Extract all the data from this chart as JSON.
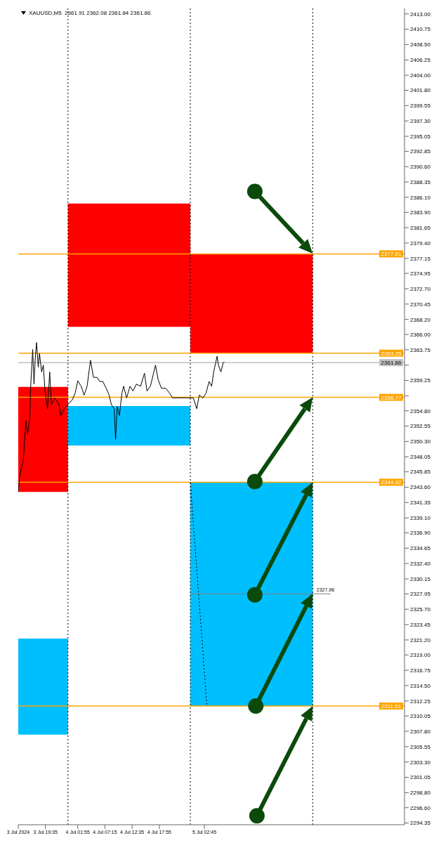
{
  "chart_data": {
    "type": "line",
    "title": "XAUUSD,M5  2361.91 2362.08 2361.84 2361.86",
    "xlim": [
      "2024-07-03T14:15",
      "2024-07-06T18:00"
    ],
    "xticks": [
      {
        "value": "2024-07-03T14:15",
        "label": "3 Jul 2024"
      },
      {
        "value": "2024-07-03T19:35",
        "label": "3 Jul 19:35"
      },
      {
        "value": "2024-07-04T01:55",
        "label": "4 Jul 01:55"
      },
      {
        "value": "2024-07-04T07:15",
        "label": "4 Jul 07:15"
      },
      {
        "value": "2024-07-04T12:35",
        "label": "4 Jul 12:35"
      },
      {
        "value": "2024-07-04T17:55",
        "label": "4 Jul 17:55"
      },
      {
        "value": "2024-07-05T02:45",
        "label": "5 Jul 02:45"
      }
    ],
    "ylim": [
      2294.1,
      2413.8
    ],
    "yticks": [
      {
        "value": 2413,
        "label": "2413.00"
      },
      {
        "value": 2410.75,
        "label": "2410.75"
      },
      {
        "value": 2408.5,
        "label": "2408.50"
      },
      {
        "value": 2406.25,
        "label": "2406.25"
      },
      {
        "value": 2404,
        "label": "2404.00"
      },
      {
        "value": 2401.8,
        "label": "2401.80"
      },
      {
        "value": 2399.55,
        "label": "2399.55"
      },
      {
        "value": 2397.3,
        "label": "2397.30"
      },
      {
        "value": 2395.05,
        "label": "2395.05"
      },
      {
        "value": 2392.85,
        "label": "2392.85"
      },
      {
        "value": 2390.6,
        "label": "2390.60"
      },
      {
        "value": 2388.35,
        "label": "2388.35"
      },
      {
        "value": 2386.1,
        "label": "2386.10"
      },
      {
        "value": 2383.9,
        "label": "2383.90"
      },
      {
        "value": 2381.65,
        "label": "2381.65"
      },
      {
        "value": 2379.4,
        "label": "2379.40"
      },
      {
        "value": 2377.15,
        "label": "2377.15"
      },
      {
        "value": 2374.95,
        "label": "2374.95"
      },
      {
        "value": 2372.7,
        "label": "2372.70"
      },
      {
        "value": 2370.45,
        "label": "2370.45"
      },
      {
        "value": 2368.2,
        "label": "2368.20"
      },
      {
        "value": 2366,
        "label": "2366.00"
      },
      {
        "value": 2363.75,
        "label": "2363.75"
      },
      {
        "value": 2361.5,
        "label": null
      },
      {
        "value": 2359.25,
        "label": "2359.25"
      },
      {
        "value": 2357,
        "label": null
      },
      {
        "value": 2354.8,
        "label": "2354.80"
      },
      {
        "value": 2352.55,
        "label": "2352.55"
      },
      {
        "value": 2350.3,
        "label": "2350.30"
      },
      {
        "value": 2348.05,
        "label": "2348.05"
      },
      {
        "value": 2345.85,
        "label": "2345.85"
      },
      {
        "value": 2343.6,
        "label": "2343.60"
      },
      {
        "value": 2341.35,
        "label": "2341.35"
      },
      {
        "value": 2339.1,
        "label": "2339.10"
      },
      {
        "value": 2336.9,
        "label": "2336.90"
      },
      {
        "value": 2334.65,
        "label": "2334.65"
      },
      {
        "value": 2332.4,
        "label": "2332.40"
      },
      {
        "value": 2330.15,
        "label": "2330.15"
      },
      {
        "value": 2327.95,
        "label": "2327.95"
      },
      {
        "value": 2325.7,
        "label": "2325.70"
      },
      {
        "value": 2323.45,
        "label": "2323.45"
      },
      {
        "value": 2321.2,
        "label": "2321.20"
      },
      {
        "value": 2319,
        "label": "2319.00"
      },
      {
        "value": 2316.75,
        "label": "2316.75"
      },
      {
        "value": 2314.5,
        "label": "2314.50"
      },
      {
        "value": 2312.25,
        "label": "2312.25"
      },
      {
        "value": 2310.05,
        "label": "2310.05"
      },
      {
        "value": 2307.8,
        "label": "2307.80"
      },
      {
        "value": 2305.55,
        "label": "2305.55"
      },
      {
        "value": 2303.3,
        "label": "2303.30"
      },
      {
        "value": 2301.05,
        "label": "2301.05"
      },
      {
        "value": 2298.8,
        "label": "2298.80"
      },
      {
        "value": 2296.6,
        "label": "2296.60"
      },
      {
        "value": 2294.35,
        "label": "2294.35"
      }
    ],
    "series": [
      {
        "type": "area",
        "color": "#ff0000",
        "x": [
          "2024-07-03T14:15",
          "2024-07-04T00:00"
        ],
        "values": [
          null,
          null
        ],
        "upper": [
          2358.3,
          2358.3
        ],
        "lower": [
          2342.9,
          2342.9
        ]
      },
      {
        "type": "area",
        "color": "#ff0000",
        "x": [
          "2024-07-04T00:00",
          "2024-07-05T00:00"
        ],
        "values": [
          null,
          null
        ],
        "upper": [
          2385.2,
          2385.2
        ],
        "lower": [
          2367.1,
          2367.1
        ]
      },
      {
        "type": "area",
        "color": "#ff0000",
        "x": [
          "2024-07-05T00:00",
          "2024-07-06T00:00"
        ],
        "values": [
          null,
          null
        ],
        "upper": [
          2377.8,
          2377.8
        ],
        "lower": [
          2363.3,
          2363.3
        ]
      },
      {
        "type": "area",
        "color": "#00bfff",
        "x": [
          "2024-07-04T00:00",
          "2024-07-05T00:00"
        ],
        "values": [
          null,
          null
        ],
        "upper": [
          2355.5,
          2355.5
        ],
        "lower": [
          2349.7,
          2349.7
        ]
      },
      {
        "type": "area",
        "color": "#00bfff",
        "x": [
          "2024-07-05T00:00",
          "2024-07-06T00:00"
        ],
        "values": [
          null,
          null
        ],
        "upper": [
          2344.3,
          2344.3
        ],
        "lower": [
          2311.5,
          2311.5
        ]
      },
      {
        "type": "area",
        "color": "#00bfff",
        "x": [
          "2024-07-03T14:15",
          "2024-07-04T00:00"
        ],
        "values": [
          null,
          null
        ],
        "upper": [
          2321.4,
          2321.4
        ],
        "lower": [
          2307.3,
          2307.3
        ]
      },
      {
        "color": "#808080",
        "x": [
          "2024-07-05T00:00",
          "2024-07-06T03:30"
        ],
        "values": [
          2327.96,
          2327.96
        ]
      },
      {
        "color": "#000000",
        "line_style": "dotted",
        "x": [
          "2024-07-05T00:00",
          "2024-07-05T03:15"
        ],
        "values": [
          2344.3,
          2311.5
        ]
      },
      {
        "color": "#000000",
        "x": [
          "2024-07-03T14:15",
          "2024-07-03T14:30",
          "2024-07-03T14:50",
          "2024-07-03T15:15",
          "2024-07-03T15:45",
          "2024-07-03T16:05",
          "2024-07-03T16:30",
          "2024-07-03T16:40",
          "2024-07-03T17:05",
          "2024-07-03T17:20",
          "2024-07-03T17:35",
          "2024-07-03T17:50",
          "2024-07-03T18:10",
          "2024-07-03T18:25",
          "2024-07-03T18:50",
          "2024-07-03T19:10",
          "2024-07-03T19:30",
          "2024-07-03T20:00",
          "2024-07-03T20:25",
          "2024-07-03T20:45",
          "2024-07-03T21:25",
          "2024-07-03T22:15",
          "2024-07-03T22:35",
          "2024-07-03T23:15",
          "2024-07-04T00:50",
          "2024-07-04T01:25",
          "2024-07-04T01:55",
          "2024-07-04T02:35",
          "2024-07-04T03:10",
          "2024-07-04T03:45",
          "2024-07-04T04:25",
          "2024-07-04T05:00",
          "2024-07-04T05:40",
          "2024-07-04T06:15",
          "2024-07-04T06:50",
          "2024-07-04T07:30",
          "2024-07-04T08:05",
          "2024-07-04T08:30",
          "2024-07-04T09:05",
          "2024-07-04T09:20",
          "2024-07-04T09:40",
          "2024-07-04T10:05",
          "2024-07-04T10:35",
          "2024-07-04T10:55",
          "2024-07-04T11:30",
          "2024-07-04T12:10",
          "2024-07-04T12:45",
          "2024-07-04T13:25",
          "2024-07-04T14:15",
          "2024-07-04T15:00",
          "2024-07-04T15:30",
          "2024-07-04T16:10",
          "2024-07-04T17:10",
          "2024-07-04T17:40",
          "2024-07-04T18:20",
          "2024-07-04T19:10",
          "2024-07-04T19:55",
          "2024-07-04T20:30",
          "2024-07-05T00:35",
          "2024-07-05T01:15",
          "2024-07-05T01:45",
          "2024-07-05T02:30",
          "2024-07-05T03:05",
          "2024-07-05T03:40",
          "2024-07-05T04:10",
          "2024-07-05T04:35",
          "2024-07-05T05:15",
          "2024-07-05T05:30",
          "2024-07-05T06:00",
          "2024-07-05T06:25",
          "2024-07-05T06:40"
        ],
        "values": [
          2342.9,
          2345.0,
          2346.3,
          2347.6,
          2353.4,
          2351.3,
          2353.7,
          2358.1,
          2363.8,
          2358.7,
          2362.5,
          2364.8,
          2361.2,
          2363.2,
          2360.5,
          2361.5,
          2357.7,
          2355.1,
          2360.5,
          2355.7,
          2356.7,
          2355.7,
          2354.1,
          2355.1,
          2356.4,
          2357.4,
          2359.2,
          2358.4,
          2357.1,
          2358.4,
          2362.2,
          2359.7,
          2359.7,
          2359.1,
          2359.1,
          2358.1,
          2357.1,
          2355.7,
          2355.1,
          2350.6,
          2355.4,
          2354.1,
          2357.4,
          2358.4,
          2356.7,
          2358.4,
          2357.7,
          2358.7,
          2358.4,
          2360.3,
          2357.7,
          2358.4,
          2361.5,
          2359.4,
          2358.1,
          2358.1,
          2357.4,
          2356.7,
          2356.7,
          2355.1,
          2357.1,
          2356.7,
          2357.4,
          2359.1,
          2358.4,
          2360.5,
          2362.8,
          2361.5,
          2360.5,
          2361.8,
          2362.0
        ]
      }
    ],
    "ref_lines": [
      {
        "axis": "x",
        "value": "2024-07-04T00:00",
        "color": "#000000",
        "line_style": "dotted"
      },
      {
        "axis": "x",
        "value": "2024-07-05T00:00",
        "color": "#000000",
        "line_style": "dotted"
      },
      {
        "axis": "x",
        "value": "2024-07-06T00:00",
        "color": "#000000",
        "line_style": "dotted"
      },
      {
        "axis": "y",
        "value": 2377.81,
        "label": "2377.81",
        "color": "#ffa500"
      },
      {
        "axis": "y",
        "value": 2363.25,
        "label": "2363.25",
        "color": "#ffa500"
      },
      {
        "axis": "y",
        "value": 2361.86,
        "label": "2361.86",
        "color": "#c0c0c0"
      },
      {
        "axis": "y",
        "value": 2356.77,
        "label": "2356.77",
        "color": "#ffa500"
      },
      {
        "axis": "y",
        "value": 2344.32,
        "label": "2344.32",
        "color": "#ffa500"
      },
      {
        "axis": "y",
        "value": 2311.51,
        "label": "2311.51",
        "color": "#ffa500"
      }
    ],
    "annotations": [
      {
        "text": "2327.96",
        "x": "2024-07-06T00:45",
        "y": 2327.96
      }
    ]
  }
}
